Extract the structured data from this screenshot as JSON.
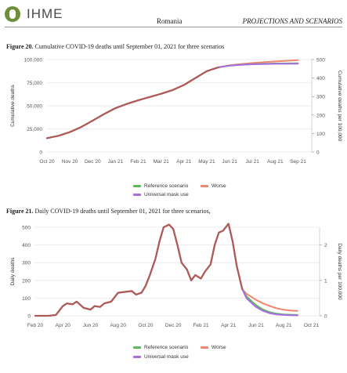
{
  "header": {
    "logo_text": "IHME",
    "country": "Romania",
    "section": "PROJECTIONS AND SCENARIOS"
  },
  "colors": {
    "reference": "#5cb85c",
    "worse": "#f0866d",
    "mask": "#a86be0",
    "overlap": "#b05a57",
    "grid": "#e6e6e6",
    "axis_text": "#555555"
  },
  "figure20": {
    "label": "Figure 20.",
    "caption": "Cumulative COVID-19 deaths until September 01, 2021 for three scenarios",
    "legend": {
      "reference": "Reference scenario",
      "worse": "Worse",
      "mask": "Universal mask use"
    }
  },
  "figure21": {
    "label": "Figure 21.",
    "caption": "Daily COVID-19 deaths until September 01, 2021 for three scenarios,",
    "legend": {
      "reference": "Reference scenario",
      "worse": "Worse",
      "mask": "Universal mask use"
    }
  },
  "chart_data": [
    {
      "type": "line",
      "ylabel": "Cumulative deaths",
      "y2label": "Cumulative deaths per 100,000",
      "ylim": [
        0,
        100000
      ],
      "y2lim": [
        0,
        500
      ],
      "yticks": [
        "0",
        "25,000",
        "50,000",
        "75,000",
        "100,000"
      ],
      "y2ticks": [
        "0",
        "100",
        "200",
        "300",
        "400",
        "500"
      ],
      "xticks": [
        "Oct 20",
        "Nov 20",
        "Dec 20",
        "Jan 21",
        "Feb 21",
        "Mar 21",
        "Apr 21",
        "May 21",
        "Jun 21",
        "Jul 21",
        "Aug 21",
        "Sep 21"
      ],
      "x_tick_months": [
        0,
        1,
        2,
        3,
        4,
        5,
        6,
        7,
        8,
        9,
        10,
        11
      ],
      "series": [
        {
          "name": "Reference scenario",
          "key": "reference",
          "x": [
            0,
            0.5,
            1,
            1.5,
            2,
            2.5,
            3,
            3.5,
            4,
            4.5,
            5,
            5.5,
            6,
            6.5,
            7,
            7.5,
            8,
            8.5,
            9,
            10,
            11
          ],
          "y": [
            15000,
            17500,
            21500,
            27000,
            34000,
            41000,
            47500,
            52000,
            56000,
            59500,
            63000,
            67000,
            72500,
            80000,
            87500,
            91500,
            93500,
            94500,
            95200,
            95800,
            96000
          ]
        },
        {
          "name": "Worse",
          "key": "worse",
          "x": [
            0,
            0.5,
            1,
            1.5,
            2,
            2.5,
            3,
            3.5,
            4,
            4.5,
            5,
            5.5,
            6,
            6.5,
            7,
            7.5,
            8,
            8.5,
            9,
            10,
            11
          ],
          "y": [
            15000,
            17500,
            21500,
            27000,
            34000,
            41000,
            47500,
            52000,
            56000,
            59500,
            63000,
            67000,
            72500,
            80000,
            87500,
            91500,
            93800,
            95200,
            96300,
            98000,
            99300
          ]
        },
        {
          "name": "Universal mask use",
          "key": "mask",
          "x": [
            0,
            0.5,
            1,
            1.5,
            2,
            2.5,
            3,
            3.5,
            4,
            4.5,
            5,
            5.5,
            6,
            6.5,
            7,
            7.5,
            8,
            8.5,
            9,
            10,
            11
          ],
          "y": [
            15000,
            17500,
            21500,
            27000,
            34000,
            41000,
            47500,
            52000,
            56000,
            59500,
            63000,
            67000,
            72500,
            80000,
            87500,
            91500,
            93400,
            94300,
            94900,
            95400,
            95600
          ]
        }
      ]
    },
    {
      "type": "line",
      "ylabel": "Daily deaths",
      "y2label": "Daily deaths per 100,000",
      "ylim": [
        0,
        500
      ],
      "y2lim": [
        0,
        2.5
      ],
      "yticks": [
        "0",
        "100",
        "200",
        "300",
        "400",
        "500"
      ],
      "y2ticks": [
        "0",
        "1",
        "2"
      ],
      "xticks": [
        "Feb 20",
        "Apr 20",
        "Jun 20",
        "Aug 20",
        "Oct 20",
        "Dec 20",
        "Feb 21",
        "Apr 21",
        "Jun 21",
        "Aug 21",
        "Oct 21"
      ],
      "x_tick_months": [
        0,
        2,
        4,
        6,
        8,
        10,
        12,
        14,
        16,
        18,
        20
      ],
      "series": [
        {
          "name": "Reference scenario",
          "key": "reference",
          "x": [
            0,
            1,
            1.5,
            2,
            2.3,
            2.7,
            3,
            3.5,
            4,
            4.3,
            4.7,
            5,
            5.5,
            6,
            6.5,
            7,
            7.3,
            7.7,
            8,
            8.3,
            8.7,
            9,
            9.3,
            9.7,
            10,
            10.3,
            10.6,
            11,
            11.3,
            11.6,
            12,
            12.3,
            12.7,
            13,
            13.3,
            13.6,
            14,
            14.3,
            14.6,
            15,
            15.3,
            15.7,
            16,
            16.5,
            17,
            17.5,
            18,
            18.5,
            19
          ],
          "y": [
            0,
            0,
            5,
            55,
            70,
            65,
            80,
            45,
            35,
            55,
            50,
            70,
            80,
            130,
            135,
            140,
            120,
            130,
            170,
            230,
            320,
            420,
            500,
            515,
            490,
            400,
            300,
            260,
            200,
            230,
            210,
            250,
            290,
            400,
            470,
            480,
            520,
            420,
            280,
            150,
            110,
            80,
            60,
            35,
            20,
            12,
            8,
            6,
            5
          ]
        },
        {
          "name": "Worse",
          "key": "worse",
          "x": [
            0,
            1,
            1.5,
            2,
            2.3,
            2.7,
            3,
            3.5,
            4,
            4.3,
            4.7,
            5,
            5.5,
            6,
            6.5,
            7,
            7.3,
            7.7,
            8,
            8.3,
            8.7,
            9,
            9.3,
            9.7,
            10,
            10.3,
            10.6,
            11,
            11.3,
            11.6,
            12,
            12.3,
            12.7,
            13,
            13.3,
            13.6,
            14,
            14.3,
            14.6,
            15,
            15.3,
            15.7,
            16,
            16.5,
            17,
            17.5,
            18,
            18.5,
            19
          ],
          "y": [
            0,
            0,
            5,
            55,
            70,
            65,
            80,
            45,
            35,
            55,
            50,
            70,
            80,
            130,
            135,
            140,
            120,
            130,
            170,
            230,
            320,
            420,
            500,
            515,
            490,
            400,
            300,
            260,
            200,
            230,
            210,
            250,
            290,
            400,
            470,
            480,
            520,
            420,
            280,
            150,
            125,
            105,
            90,
            70,
            55,
            42,
            34,
            30,
            28
          ]
        },
        {
          "name": "Universal mask use",
          "key": "mask",
          "x": [
            0,
            1,
            1.5,
            2,
            2.3,
            2.7,
            3,
            3.5,
            4,
            4.3,
            4.7,
            5,
            5.5,
            6,
            6.5,
            7,
            7.3,
            7.7,
            8,
            8.3,
            8.7,
            9,
            9.3,
            9.7,
            10,
            10.3,
            10.6,
            11,
            11.3,
            11.6,
            12,
            12.3,
            12.7,
            13,
            13.3,
            13.6,
            14,
            14.3,
            14.6,
            15,
            15.3,
            15.7,
            16,
            16.5,
            17,
            17.5,
            18,
            18.5,
            19
          ],
          "y": [
            0,
            0,
            5,
            55,
            70,
            65,
            80,
            45,
            35,
            55,
            50,
            70,
            80,
            130,
            135,
            140,
            120,
            130,
            170,
            230,
            320,
            420,
            500,
            515,
            490,
            400,
            300,
            260,
            200,
            230,
            210,
            250,
            290,
            400,
            470,
            480,
            520,
            420,
            280,
            150,
            100,
            70,
            50,
            28,
            14,
            8,
            5,
            3,
            2
          ]
        }
      ]
    }
  ]
}
